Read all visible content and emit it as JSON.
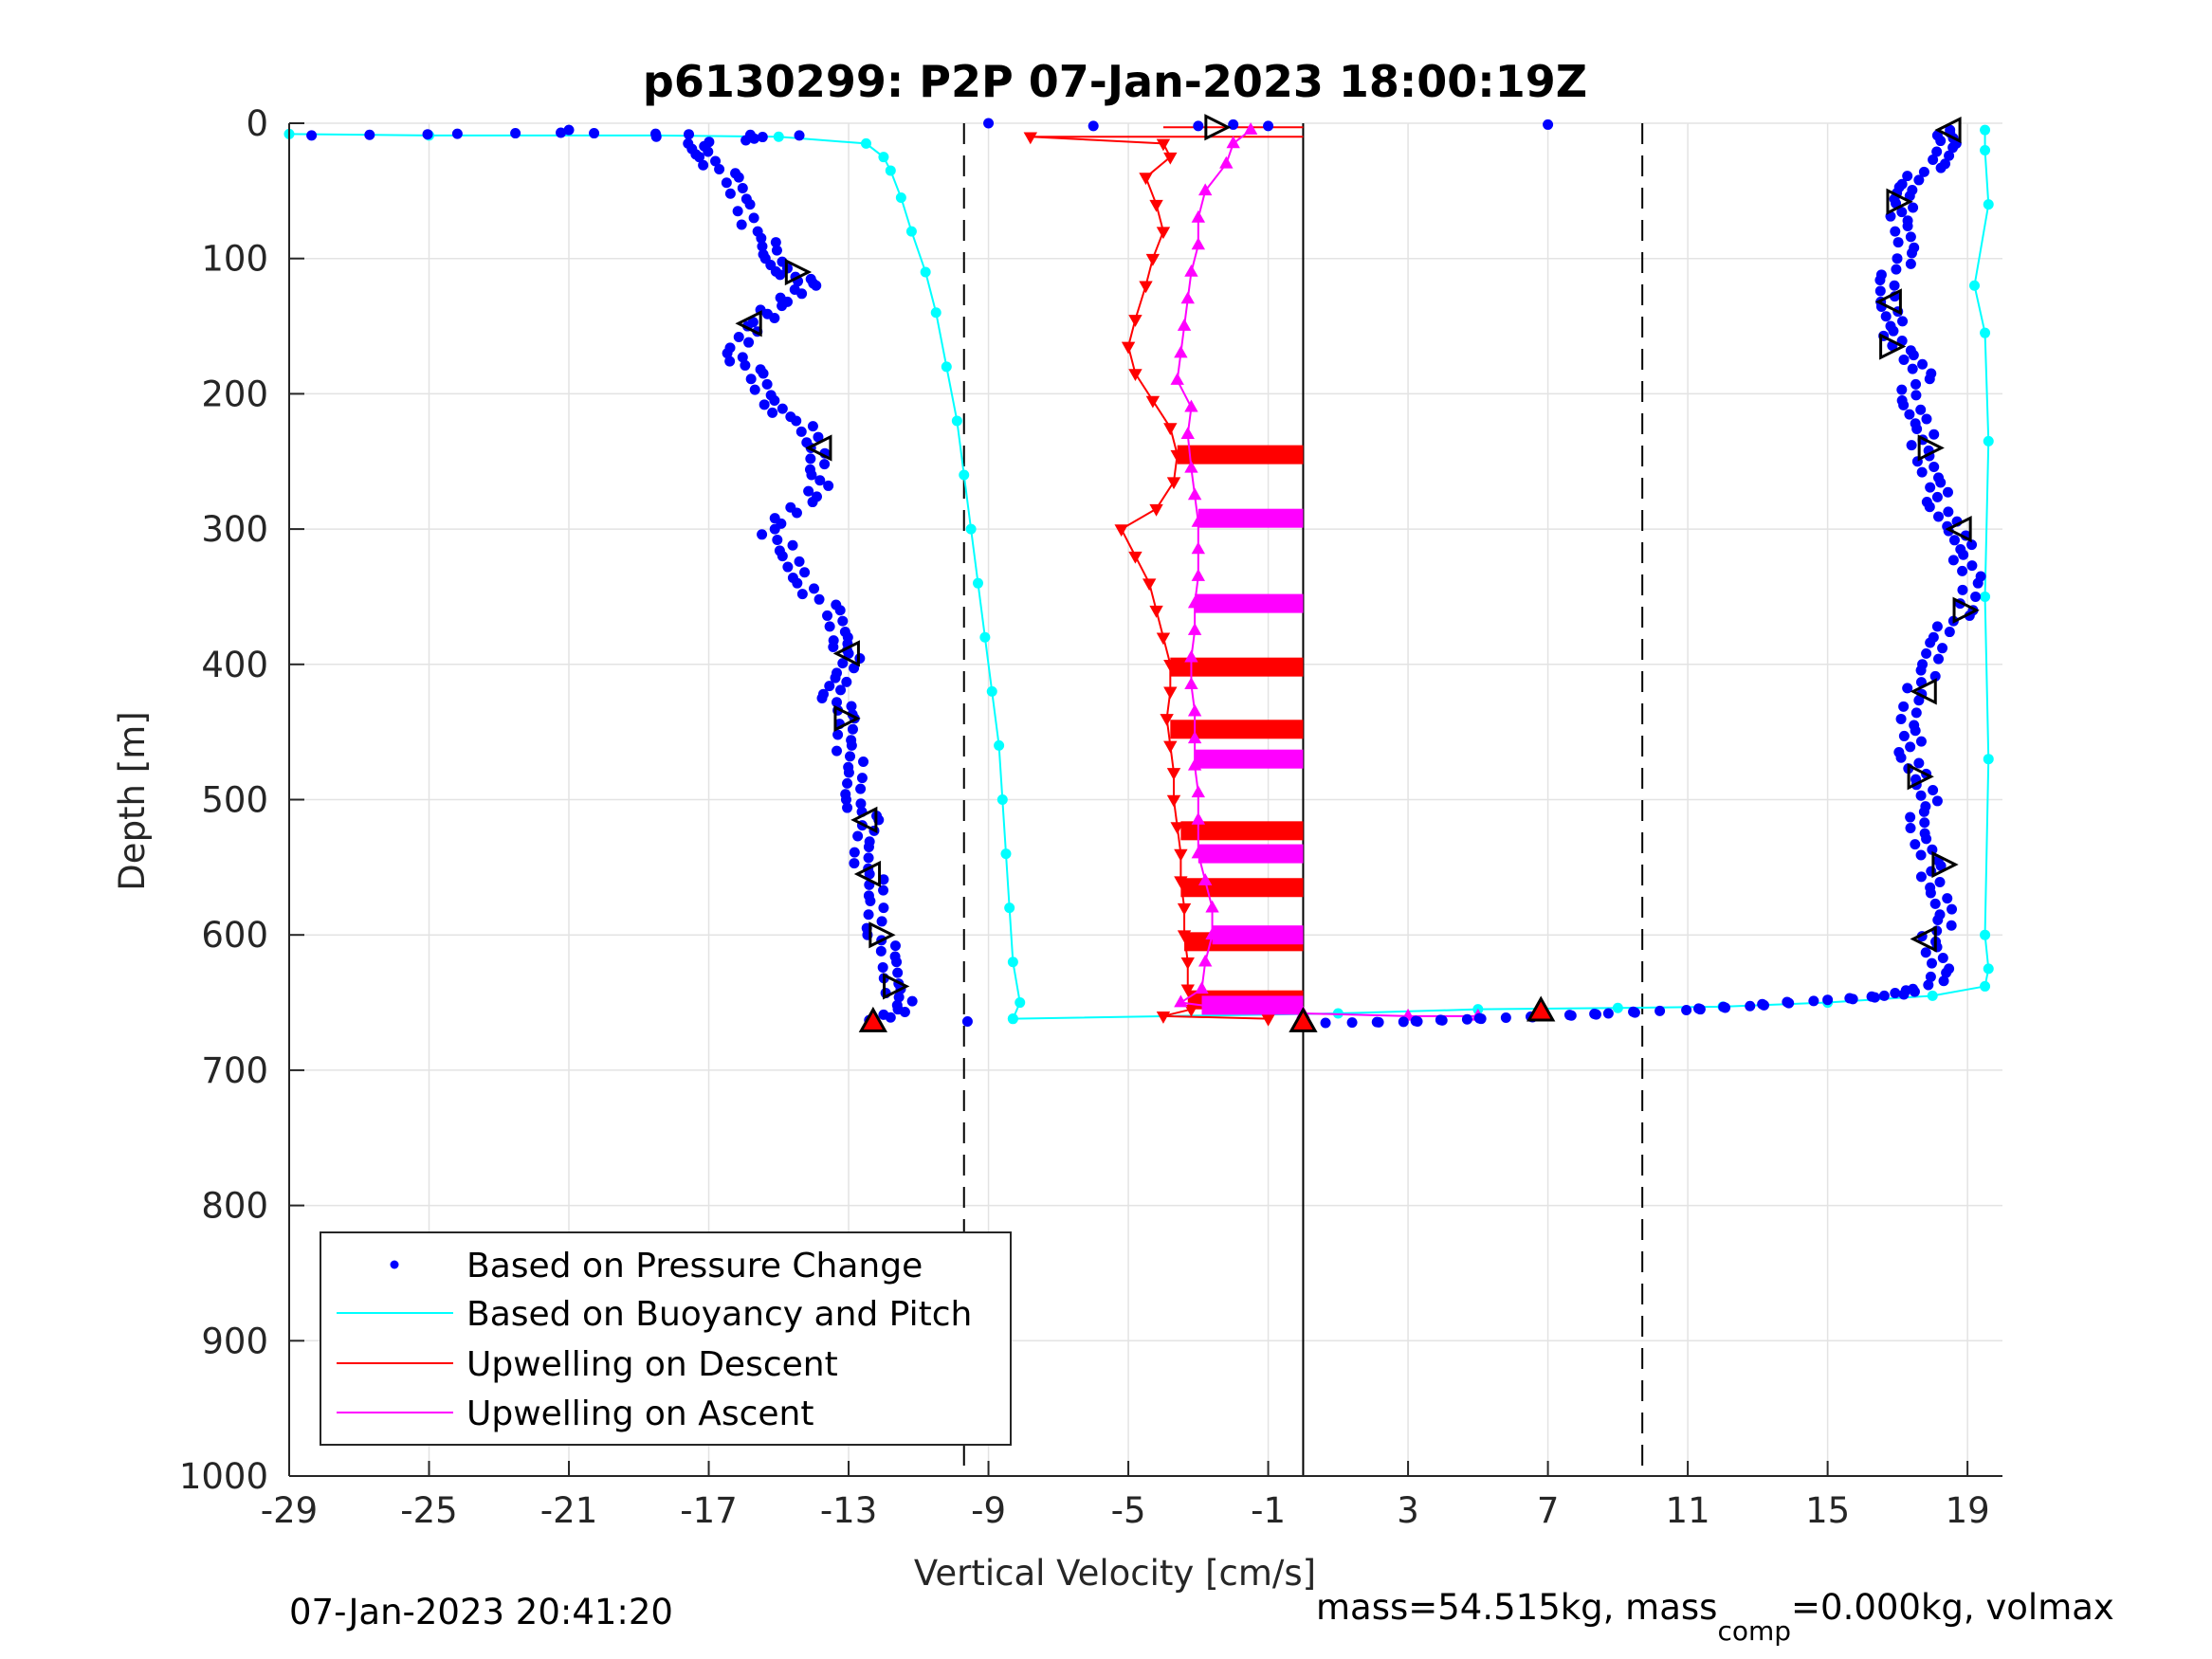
{
  "chart_data": {
    "type": "scatter",
    "title": "p6130299: P2P 07-Jan-2023 18:00:19Z",
    "xlabel": "Vertical Velocity [cm/s]",
    "ylabel": "Depth [m]",
    "xlim": [
      -29,
      20
    ],
    "ylim": [
      0,
      1000
    ],
    "y_reversed": true,
    "grid": true,
    "xticks": [
      -29,
      -25,
      -21,
      -17,
      -13,
      -9,
      -5,
      -1,
      3,
      7,
      11,
      15,
      19
    ],
    "yticks": [
      0,
      100,
      200,
      300,
      400,
      500,
      600,
      700,
      800,
      900,
      1000
    ],
    "vlines_dashed": [
      -9.7,
      9.7
    ],
    "vline_solid": 0,
    "legend_position": "bottom-left",
    "colors": {
      "pressure": "#0000ff",
      "buoyancy": "#00ffff",
      "descent": "#ff0000",
      "ascent": "#ff00ff",
      "markers": "#000000"
    },
    "series": [
      {
        "name": "Based on Pressure Change",
        "style": "dots",
        "descent": [
          [
            -28,
            9
          ],
          [
            -21.5,
            7
          ],
          [
            -14.5,
            9
          ],
          [
            -17.5,
            15
          ],
          [
            -17,
            25
          ],
          [
            -16.5,
            40
          ],
          [
            -16,
            60
          ],
          [
            -15.5,
            85
          ],
          [
            -15.2,
            100
          ],
          [
            -14.6,
            112
          ],
          [
            -14.2,
            120
          ],
          [
            -15,
            135
          ],
          [
            -15.8,
            150
          ],
          [
            -16.2,
            170
          ],
          [
            -15.8,
            185
          ],
          [
            -15.3,
            205
          ],
          [
            -14.5,
            220
          ],
          [
            -13.9,
            240
          ],
          [
            -13.7,
            260
          ],
          [
            -14.3,
            280
          ],
          [
            -15.2,
            300
          ],
          [
            -14.8,
            320
          ],
          [
            -14.2,
            340
          ],
          [
            -13.6,
            360
          ],
          [
            -13.2,
            380
          ],
          [
            -13,
            392
          ],
          [
            -13.2,
            410
          ],
          [
            -13.4,
            425
          ],
          [
            -13.1,
            440
          ],
          [
            -13,
            460
          ],
          [
            -12.9,
            480
          ],
          [
            -12.8,
            500
          ],
          [
            -12.5,
            515
          ],
          [
            -12.6,
            535
          ],
          [
            -12.4,
            555
          ],
          [
            -12.2,
            575
          ],
          [
            -12.1,
            600
          ],
          [
            -11.9,
            620
          ],
          [
            -11.6,
            640
          ],
          [
            -11.5,
            655
          ],
          [
            -12.3,
            665
          ]
        ],
        "ascent": [
          [
            1,
            665
          ],
          [
            3,
            664
          ],
          [
            5,
            662
          ],
          [
            7,
            660
          ],
          [
            9,
            658
          ],
          [
            11,
            655
          ],
          [
            13,
            652
          ],
          [
            15,
            648
          ],
          [
            16.8,
            645
          ],
          [
            17.8,
            640
          ],
          [
            18.2,
            625
          ],
          [
            18,
            605
          ],
          [
            18.3,
            585
          ],
          [
            18.2,
            565
          ],
          [
            17.8,
            545
          ],
          [
            17.6,
            525
          ],
          [
            17.8,
            505
          ],
          [
            17.7,
            485
          ],
          [
            17.4,
            465
          ],
          [
            17.2,
            445
          ],
          [
            17.6,
            422
          ],
          [
            17.8,
            400
          ],
          [
            18.3,
            380
          ],
          [
            18.8,
            360
          ],
          [
            19.2,
            335
          ],
          [
            18.8,
            315
          ],
          [
            18.6,
            298
          ],
          [
            18.2,
            280
          ],
          [
            17.9,
            262
          ],
          [
            17.8,
            242
          ],
          [
            17.6,
            222
          ],
          [
            17.4,
            205
          ],
          [
            17.6,
            185
          ],
          [
            17.2,
            168
          ],
          [
            16.8,
            150
          ],
          [
            16.7,
            132
          ],
          [
            16.9,
            112
          ],
          [
            17.2,
            92
          ],
          [
            17.2,
            72
          ],
          [
            17,
            56
          ],
          [
            17.4,
            45
          ],
          [
            18,
            30
          ],
          [
            18.5,
            15
          ],
          [
            18.5,
            5
          ]
        ],
        "stray": [
          [
            -9,
            0
          ],
          [
            -6,
            2
          ],
          [
            -3,
            2
          ],
          [
            -2,
            1
          ],
          [
            -1,
            2
          ],
          [
            7,
            1
          ],
          [
            -9.6,
            664
          ],
          [
            -21,
            5
          ],
          [
            -18.5,
            10
          ]
        ]
      },
      {
        "name": "Based on Buoyancy and Pitch",
        "style": "line+dots",
        "descent": [
          [
            -29,
            8
          ],
          [
            -25,
            9
          ],
          [
            -18.5,
            9
          ],
          [
            -15,
            10
          ],
          [
            -12.5,
            15
          ],
          [
            -12,
            25
          ],
          [
            -11.8,
            35
          ],
          [
            -11.5,
            55
          ],
          [
            -11.2,
            80
          ],
          [
            -10.8,
            110
          ],
          [
            -10.5,
            140
          ],
          [
            -10.2,
            180
          ],
          [
            -9.9,
            220
          ],
          [
            -9.7,
            260
          ],
          [
            -9.5,
            300
          ],
          [
            -9.3,
            340
          ],
          [
            -9.1,
            380
          ],
          [
            -8.9,
            420
          ],
          [
            -8.7,
            460
          ],
          [
            -8.6,
            500
          ],
          [
            -8.5,
            540
          ],
          [
            -8.4,
            580
          ],
          [
            -8.3,
            620
          ],
          [
            -8.1,
            650
          ],
          [
            -8.3,
            662
          ]
        ],
        "ascent": [
          [
            -8.3,
            662
          ],
          [
            1,
            658
          ],
          [
            5,
            655
          ],
          [
            9,
            654
          ],
          [
            12,
            653
          ],
          [
            15,
            650
          ],
          [
            18,
            645
          ],
          [
            19.5,
            638
          ],
          [
            19.6,
            625
          ],
          [
            19.5,
            600
          ],
          [
            19.6,
            470
          ],
          [
            19.5,
            350
          ],
          [
            19.6,
            235
          ],
          [
            19.5,
            155
          ],
          [
            19.2,
            120
          ],
          [
            19.6,
            60
          ],
          [
            19.5,
            20
          ],
          [
            19.5,
            5
          ]
        ]
      },
      {
        "name": "Upwelling on Descent",
        "style": "triangle-down",
        "values": [
          [
            -7.8,
            10
          ],
          [
            -4,
            15
          ],
          [
            -3.8,
            25
          ],
          [
            -4.5,
            40
          ],
          [
            -4.2,
            60
          ],
          [
            -4,
            80
          ],
          [
            -4.3,
            100
          ],
          [
            -4.5,
            120
          ],
          [
            -4.8,
            145
          ],
          [
            -5,
            165
          ],
          [
            -4.8,
            185
          ],
          [
            -4.3,
            205
          ],
          [
            -3.8,
            225
          ],
          [
            -3.6,
            245
          ],
          [
            -3.7,
            265
          ],
          [
            -4.2,
            285
          ],
          [
            -5.2,
            300
          ],
          [
            -4.8,
            320
          ],
          [
            -4.4,
            340
          ],
          [
            -4.2,
            360
          ],
          [
            -4,
            380
          ],
          [
            -3.8,
            400
          ],
          [
            -3.8,
            420
          ],
          [
            -3.9,
            440
          ],
          [
            -3.8,
            460
          ],
          [
            -3.7,
            480
          ],
          [
            -3.7,
            500
          ],
          [
            -3.6,
            520
          ],
          [
            -3.5,
            540
          ],
          [
            -3.5,
            560
          ],
          [
            -3.4,
            580
          ],
          [
            -3.4,
            600
          ],
          [
            -3.3,
            620
          ],
          [
            -3.3,
            640
          ],
          [
            -3.2,
            655
          ],
          [
            -4,
            660
          ],
          [
            -1,
            662
          ]
        ],
        "segments": [
          [
            -7.8,
            0,
            10
          ],
          [
            -4,
            0,
            3
          ]
        ],
        "bands": [
          [
            -3.6,
            0,
            245
          ],
          [
            -3.8,
            0,
            402
          ],
          [
            -3.8,
            0,
            448
          ],
          [
            -3.5,
            0,
            523
          ],
          [
            -3.5,
            0,
            565
          ],
          [
            -3.4,
            0,
            605
          ],
          [
            -3.3,
            0,
            648
          ]
        ]
      },
      {
        "name": "Upwelling on Ascent",
        "style": "triangle-up",
        "values": [
          [
            -1.5,
            5
          ],
          [
            -2,
            15
          ],
          [
            -2.2,
            30
          ],
          [
            -2.8,
            50
          ],
          [
            -3,
            70
          ],
          [
            -3,
            90
          ],
          [
            -3.2,
            110
          ],
          [
            -3.3,
            130
          ],
          [
            -3.4,
            150
          ],
          [
            -3.5,
            170
          ],
          [
            -3.6,
            190
          ],
          [
            -3.2,
            210
          ],
          [
            -3.3,
            230
          ],
          [
            -3.2,
            255
          ],
          [
            -3.1,
            275
          ],
          [
            -3,
            295
          ],
          [
            -3,
            315
          ],
          [
            -3,
            335
          ],
          [
            -3.1,
            355
          ],
          [
            -3.1,
            375
          ],
          [
            -3.2,
            395
          ],
          [
            -3.2,
            415
          ],
          [
            -3.1,
            435
          ],
          [
            -3.1,
            455
          ],
          [
            -3.1,
            475
          ],
          [
            -3,
            495
          ],
          [
            -3,
            515
          ],
          [
            -3,
            540
          ],
          [
            -2.8,
            560
          ],
          [
            -2.6,
            580
          ],
          [
            -2.6,
            600
          ],
          [
            -2.8,
            620
          ],
          [
            -2.9,
            640
          ],
          [
            -3.5,
            650
          ],
          [
            -2,
            655
          ],
          [
            0,
            658
          ],
          [
            3,
            660
          ],
          [
            5,
            660
          ]
        ],
        "bands": [
          [
            -3,
            0,
            292
          ],
          [
            -3.1,
            0,
            355
          ],
          [
            -3.1,
            0,
            470
          ],
          [
            -3,
            0,
            540
          ],
          [
            -2.6,
            0,
            600
          ],
          [
            -2.9,
            0,
            652
          ]
        ]
      }
    ],
    "markers_open": [
      [
        -2.5,
        3
      ],
      [
        18.5,
        5
      ],
      [
        -14.5,
        110
      ],
      [
        -15.8,
        148
      ],
      [
        17,
        58
      ],
      [
        16.8,
        132
      ],
      [
        16.8,
        165
      ],
      [
        -13.8,
        240
      ],
      [
        17.9,
        240
      ],
      [
        18.8,
        300
      ],
      [
        18.9,
        360
      ],
      [
        -13,
        392
      ],
      [
        -13.1,
        440
      ],
      [
        17.8,
        420
      ],
      [
        17.6,
        483
      ],
      [
        -12.5,
        515
      ],
      [
        18.3,
        548
      ],
      [
        -12.4,
        555
      ],
      [
        -12.1,
        600
      ],
      [
        17.8,
        603
      ],
      [
        -11.7,
        638
      ]
    ],
    "markers_filled": [
      [
        -12.3,
        665
      ],
      [
        0,
        665
      ],
      [
        6.8,
        657
      ]
    ]
  },
  "footer": {
    "timestamp": "07-Jan-2023 20:41:20",
    "mass_text_a": "mass=54.515kg, mass",
    "mass_sub": "comp",
    "mass_text_b": "=0.000kg, volmax"
  }
}
